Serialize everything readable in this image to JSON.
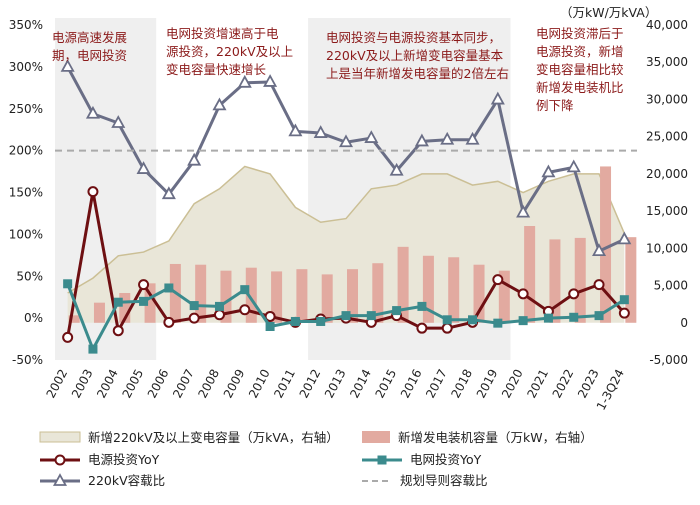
{
  "chart_data": {
    "type": "combo",
    "categories": [
      "2002",
      "2003",
      "2004",
      "2005",
      "2006",
      "2007",
      "2008",
      "2009",
      "2010",
      "2011",
      "2012",
      "2013",
      "2014",
      "2015",
      "2016",
      "2017",
      "2018",
      "2019",
      "2020",
      "2021",
      "2022",
      "2023",
      "1-3Q24"
    ],
    "left_axis": {
      "ylim": [
        -50,
        350
      ],
      "ticks": [
        "-50%",
        "0%",
        "50%",
        "100%",
        "150%",
        "200%",
        "250%",
        "300%",
        "350%"
      ],
      "tick_values": [
        -50,
        0,
        50,
        100,
        150,
        200,
        250,
        300,
        350
      ]
    },
    "right_axis": {
      "unit_label": "（万kW/万kVA）",
      "ylim": [
        -5000,
        40000
      ],
      "ticks": [
        "-5,000",
        "0",
        "5,000",
        "10,000",
        "15,000",
        "20,000",
        "25,000",
        "30,000",
        "35,000",
        "40,000"
      ],
      "tick_values": [
        -5000,
        0,
        5000,
        10000,
        15000,
        20000,
        25000,
        30000,
        35000,
        40000
      ]
    },
    "shaded_ranges": [
      [
        0,
        3
      ],
      [
        10,
        17
      ]
    ],
    "series": [
      {
        "name": "新增220kV及以上变电容量（万kVA，右轴）",
        "type": "area",
        "axis": "right",
        "color": "#e9e6d8",
        "stroke": "#cbbf95",
        "values": [
          4000,
          6000,
          9000,
          9500,
          11000,
          16000,
          18000,
          21000,
          20000,
          15500,
          13500,
          14000,
          18000,
          18500,
          20000,
          20000,
          18500,
          19000,
          17500,
          19000,
          20000,
          20000,
          12000
        ]
      },
      {
        "name": "新增发电装机容量（万kW，右轴）",
        "type": "bar",
        "axis": "right",
        "color": "#e2aaa0",
        "values": [
          1000,
          2700,
          4000,
          5300,
          7900,
          7800,
          7000,
          7400,
          6900,
          7200,
          6500,
          7200,
          8000,
          10200,
          9000,
          8800,
          7800,
          7000,
          13000,
          11200,
          11400,
          21000,
          11500
        ]
      },
      {
        "name": "电源投资YoY",
        "type": "line",
        "axis": "left",
        "color": "#6e0f12",
        "marker": "circle",
        "values": [
          -23,
          151,
          -15,
          40,
          -5,
          0,
          4,
          10,
          2,
          -5,
          -1,
          0,
          -5,
          3,
          -12,
          -12,
          -5,
          46,
          29,
          8,
          29,
          40,
          6
        ]
      },
      {
        "name": "电网投资YoY",
        "type": "line",
        "axis": "left",
        "color": "#3b8b8d",
        "marker": "square",
        "values": [
          41,
          -37,
          19,
          20,
          36,
          15,
          14,
          34,
          -10,
          -4,
          -4,
          3,
          3,
          9,
          14,
          -2,
          -2,
          -6,
          -3,
          0,
          1,
          3,
          22
        ]
      },
      {
        "name": "220kV容载比",
        "type": "line",
        "axis": "left",
        "color": "#6a6e86",
        "marker": "triangle",
        "values": [
          300,
          244,
          233,
          178,
          148,
          188,
          254,
          281,
          282,
          223,
          221,
          210,
          215,
          176,
          211,
          213,
          213,
          261,
          126,
          174,
          180,
          80,
          94
        ]
      },
      {
        "name": "规划导则容载比",
        "type": "line",
        "axis": "left",
        "color": "#aaaaaa",
        "dashed": true,
        "values": [
          200,
          200,
          200,
          200,
          200,
          200,
          200,
          200,
          200,
          200,
          200,
          200,
          200,
          200,
          200,
          200,
          200,
          200,
          200,
          200,
          200,
          200,
          200
        ]
      }
    ],
    "annotations": [
      {
        "lines": [
          "电源高速发展",
          "期，电网投资"
        ]
      },
      {
        "lines": [
          "电网投资增速高于电",
          "源投资，220kV及以上",
          "变电容量快速增长"
        ]
      },
      {
        "lines": [
          "电网投资与电源投资基本同步，",
          "220kV及以上新增变电容量基本",
          "上是当年新增发电容量的2倍左右"
        ]
      },
      {
        "lines": [
          "电网投资滞后于",
          "电源投资，新增",
          "变电容量相比较",
          "新增发电装机比",
          "例下降"
        ]
      }
    ],
    "legend_position": "bottom",
    "grid": false
  },
  "colors": {
    "annotation_text": "#8b1a1a",
    "shade": "#efefef"
  }
}
